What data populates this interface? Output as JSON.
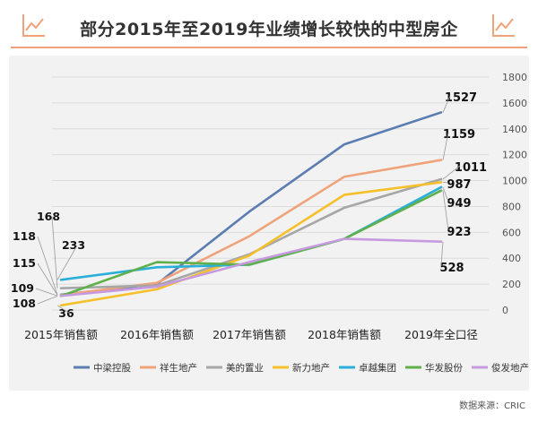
{
  "header": {
    "title": "部分2015年至2019年业绩增长较快的中型房企",
    "accent_color": "#f0a37a",
    "left_icon": "line-chart-icon",
    "right_icon": "line-chart-icon"
  },
  "footer": {
    "source": "数据来源：CRIC"
  },
  "chart_data": {
    "type": "line",
    "title": "部分2015年至2019年业绩增长较快的中型房企",
    "categories": [
      "2015年销售额",
      "2016年销售额",
      "2017年销售额",
      "2018年销售额",
      "2019年全口径"
    ],
    "ylim": [
      0,
      1800
    ],
    "yticks": [
      0,
      200,
      400,
      600,
      800,
      1000,
      1200,
      1400,
      1600,
      1800
    ],
    "grid": "horizontal",
    "legend_position": "bottom",
    "series": [
      {
        "name": "中梁控股",
        "color": "#5b7db1",
        "values": [
          118,
          200,
          760,
          1280,
          1527
        ]
      },
      {
        "name": "祥生地产",
        "color": "#f0a37a",
        "values": [
          115,
          210,
          570,
          1030,
          1159
        ]
      },
      {
        "name": "美的置业",
        "color": "#a6a6a6",
        "values": [
          168,
          190,
          430,
          790,
          1011
        ]
      },
      {
        "name": "新力地产",
        "color": "#f5c02a",
        "values": [
          36,
          160,
          420,
          890,
          987
        ]
      },
      {
        "name": "卓越集团",
        "color": "#2bafd8",
        "values": [
          233,
          330,
          350,
          550,
          949
        ]
      },
      {
        "name": "华发股份",
        "color": "#5fb04a",
        "values": [
          108,
          370,
          350,
          550,
          923
        ]
      },
      {
        "name": "俊发地产",
        "color": "#c79ae0",
        "values": [
          109,
          180,
          370,
          550,
          528
        ]
      }
    ],
    "start_labels": [
      "168",
      "118",
      "233",
      "115",
      "109",
      "108",
      "36"
    ],
    "end_labels": [
      "1527",
      "1159",
      "1011",
      "987",
      "949",
      "923",
      "528"
    ]
  }
}
